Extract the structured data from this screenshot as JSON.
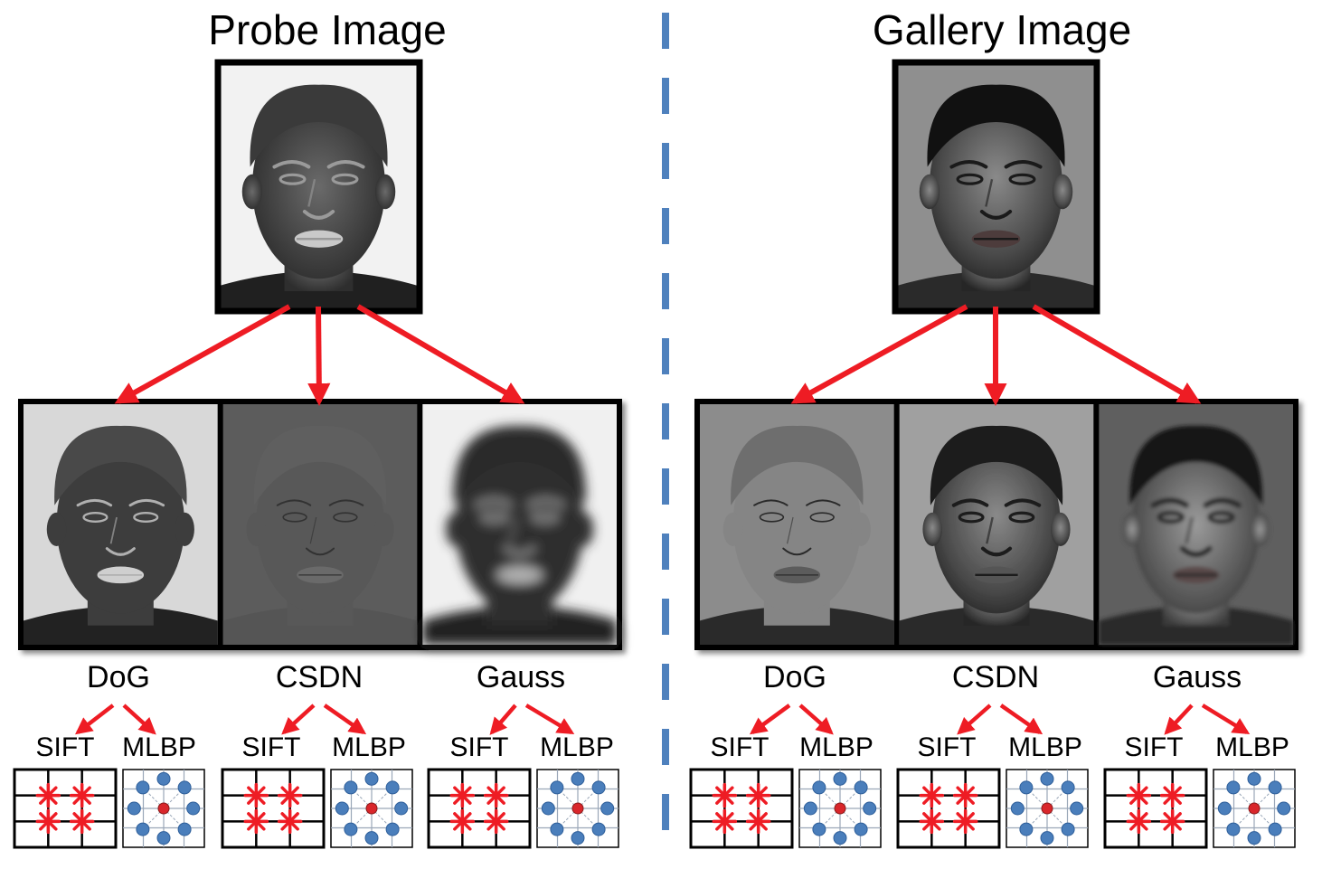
{
  "panels": [
    {
      "id": "probe",
      "title": "Probe Image",
      "methods": [
        "DoG",
        "CSDN",
        "Gauss"
      ],
      "features": [
        "SIFT",
        "MLBP"
      ]
    },
    {
      "id": "gallery",
      "title": "Gallery Image",
      "methods": [
        "DoG",
        "CSDN",
        "Gauss"
      ],
      "features": [
        "SIFT",
        "MLBP"
      ]
    }
  ],
  "colors": {
    "arrow": "#ee1c24",
    "divider": "#4f81bd",
    "frame": "#000000",
    "mlbp_dot": "#4a7ebb",
    "mlbp_center": "#d9262b",
    "grid_thin": "#9aa7b8"
  }
}
